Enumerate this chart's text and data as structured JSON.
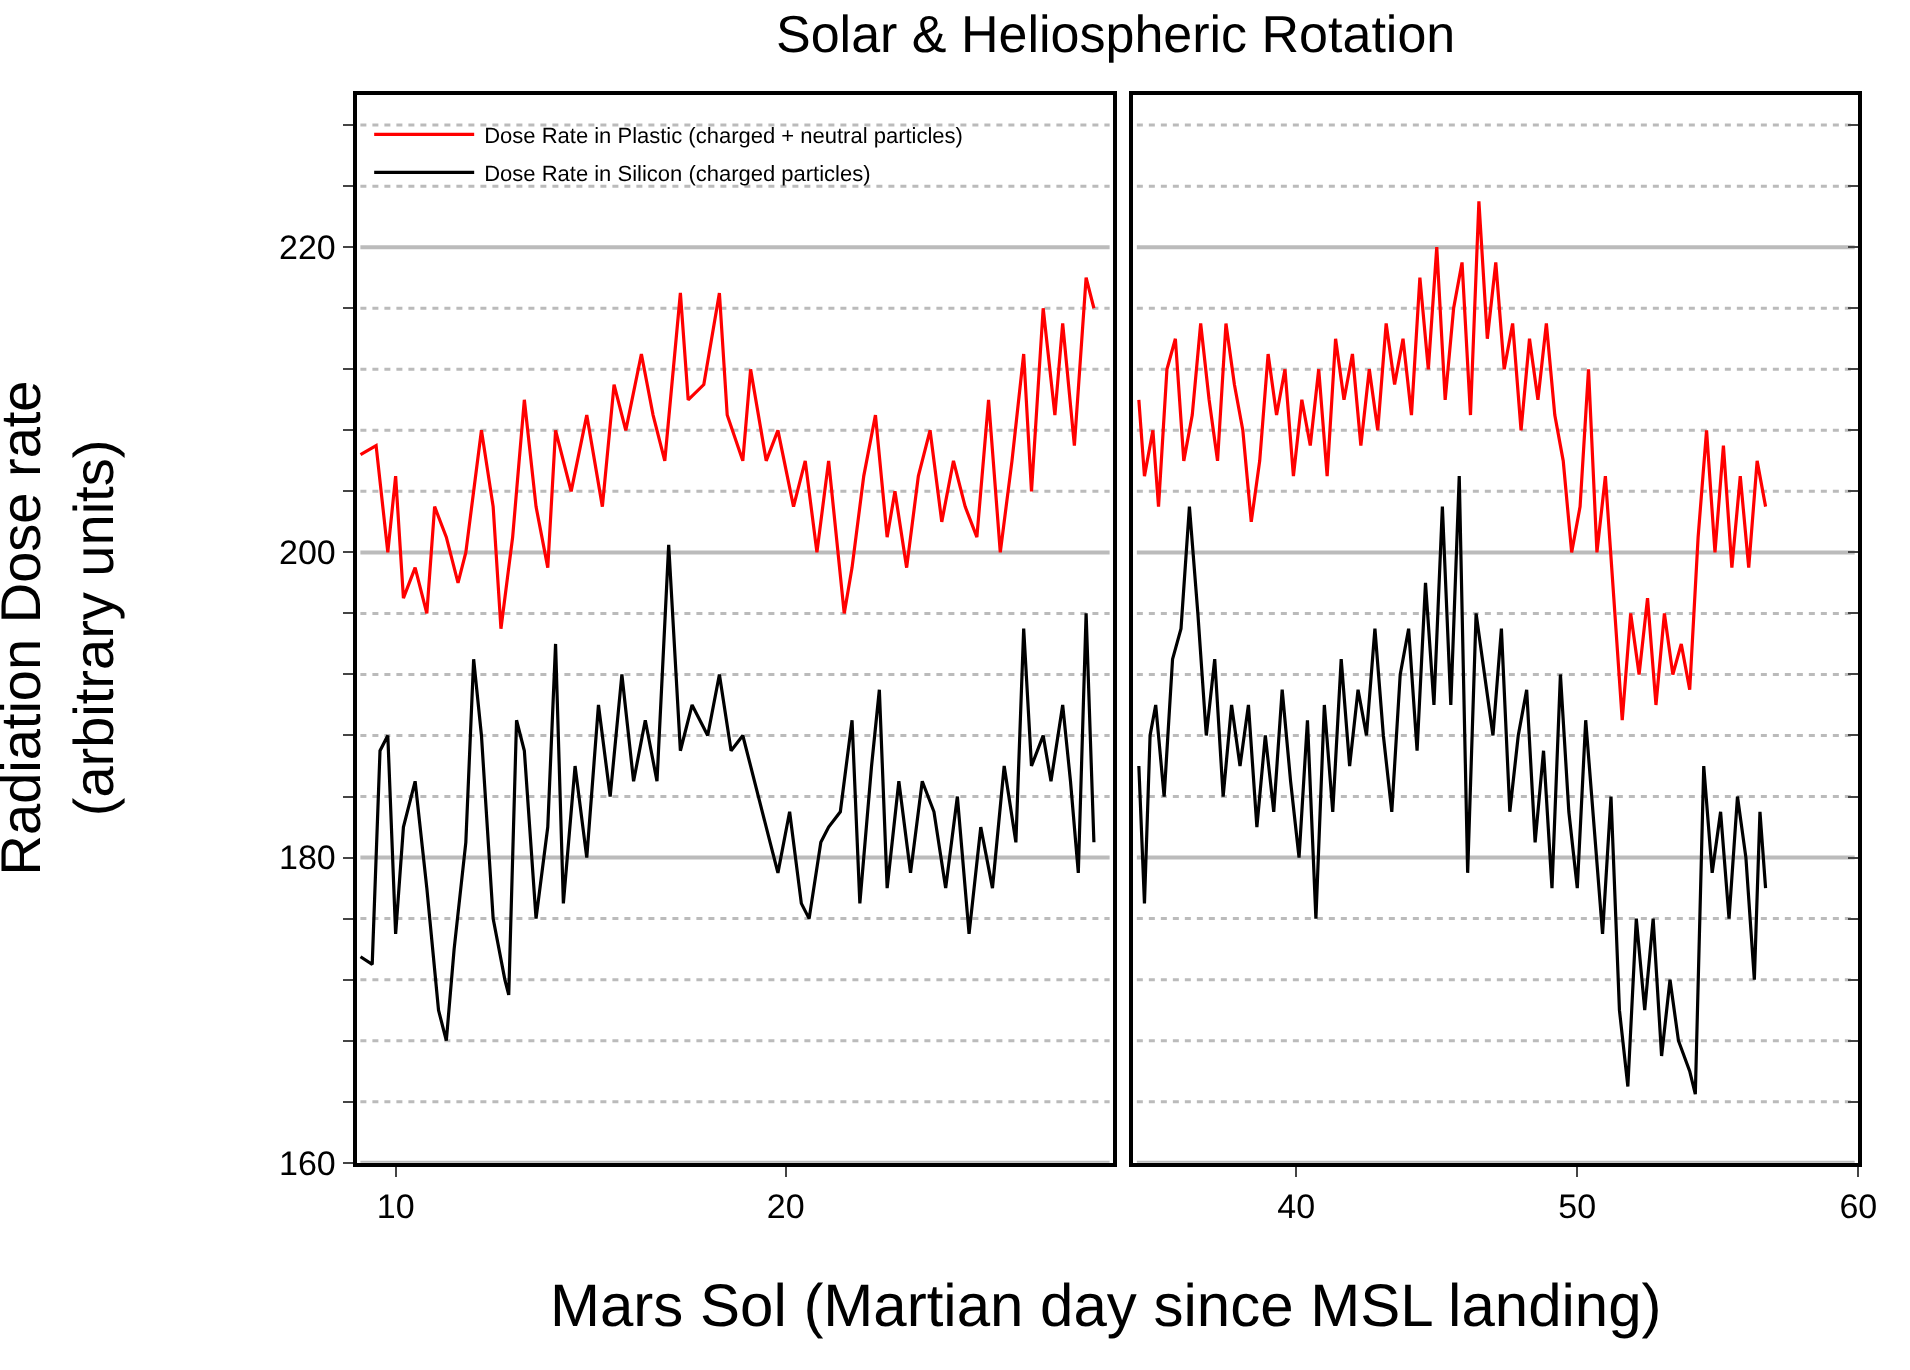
{
  "chart_data": [
    {
      "type": "line",
      "title": "Solar & Heliospheric Rotation",
      "xlabel": "Mars Sol (Martian day since MSL landing)",
      "ylabel": "Radiation Dose rate\n(arbitrary units)",
      "xlim": [
        9,
        28.4
      ],
      "xticks": [
        10,
        20
      ],
      "ylim": [
        160,
        230
      ],
      "yticks": [
        160,
        {
          "value": 164,
          "label": null
        },
        {
          "value": 168,
          "label": null
        },
        {
          "value": 172,
          "label": null
        },
        {
          "value": 176,
          "label": null
        },
        180,
        {
          "value": 184,
          "label": null
        },
        {
          "value": 188,
          "label": null
        },
        {
          "value": 192,
          "label": null
        },
        {
          "value": 196,
          "label": null
        },
        200,
        {
          "value": 204,
          "label": null
        },
        {
          "value": 208,
          "label": null
        },
        {
          "value": 212,
          "label": null
        },
        {
          "value": 216,
          "label": null
        },
        220,
        {
          "value": 224,
          "label": null
        },
        {
          "value": 228,
          "label": null
        }
      ],
      "grid": "y",
      "legend": "top left",
      "marker": "none",
      "line_style": "solid",
      "series": [
        {
          "name": "Dose Rate in Plastic (charged + neutral particles)",
          "color": "#ff0000",
          "x": [
            9.1,
            9.5,
            9.8,
            10.0,
            10.2,
            10.5,
            10.8,
            11.0,
            11.3,
            11.6,
            11.8,
            12.2,
            12.5,
            12.7,
            13.0,
            13.3,
            13.6,
            13.9,
            14.1,
            14.5,
            14.9,
            15.3,
            15.6,
            15.9,
            16.3,
            16.6,
            16.9,
            17.3,
            17.5,
            17.9,
            18.3,
            18.5,
            18.9,
            19.1,
            19.5,
            19.8,
            20.2,
            20.5,
            20.8,
            21.1,
            21.5,
            21.7,
            22.0,
            22.3,
            22.6,
            22.8,
            23.1,
            23.4,
            23.7,
            24.0,
            24.3,
            24.6,
            24.9,
            25.2,
            25.5,
            25.8,
            26.1,
            26.3,
            26.6,
            26.9,
            27.1,
            27.4,
            27.7,
            27.9
          ],
          "values": [
            206.4,
            207,
            200,
            205,
            197,
            199,
            196,
            203,
            201,
            198,
            200,
            208,
            203,
            195,
            201,
            210,
            203,
            199,
            208,
            204,
            209,
            203,
            211,
            208,
            213,
            209,
            206,
            217,
            210,
            211,
            217,
            209,
            206,
            212,
            206,
            208,
            203,
            206,
            200,
            206,
            196,
            199,
            205,
            209,
            201,
            204,
            199,
            205,
            208,
            202,
            206,
            203,
            201,
            210,
            200,
            206,
            213,
            204,
            216,
            209,
            215,
            207,
            218,
            216
          ]
        },
        {
          "name": "Dose Rate in Silicon (charged particles)",
          "color": "#000000",
          "x": [
            9.1,
            9.4,
            9.6,
            9.8,
            10.0,
            10.2,
            10.5,
            10.8,
            11.1,
            11.3,
            11.5,
            11.8,
            12.0,
            12.2,
            12.5,
            12.8,
            12.9,
            13.1,
            13.3,
            13.6,
            13.9,
            14.1,
            14.3,
            14.6,
            14.9,
            15.2,
            15.5,
            15.8,
            16.1,
            16.4,
            16.7,
            17.0,
            17.3,
            17.6,
            18.0,
            18.3,
            18.6,
            18.9,
            19.3,
            19.6,
            19.8,
            20.1,
            20.4,
            20.6,
            20.9,
            21.1,
            21.4,
            21.7,
            21.9,
            22.2,
            22.4,
            22.6,
            22.9,
            23.2,
            23.5,
            23.8,
            24.1,
            24.4,
            24.7,
            25.0,
            25.3,
            25.6,
            25.9,
            26.1,
            26.3,
            26.6,
            26.8,
            27.1,
            27.3,
            27.5,
            27.7,
            27.9
          ],
          "values": [
            173.5,
            173,
            187,
            188,
            175,
            182,
            185,
            178,
            170,
            168,
            174,
            181,
            193,
            188,
            176,
            172,
            171,
            189,
            187,
            176,
            182,
            194,
            177,
            186,
            180,
            190,
            184,
            192,
            185,
            189,
            185,
            200.5,
            187,
            190,
            188,
            192,
            187,
            188,
            184,
            181,
            179,
            183,
            177,
            176,
            181,
            182,
            183,
            189,
            177,
            186,
            191,
            178,
            185,
            179,
            185,
            183,
            178,
            184,
            175,
            182,
            178,
            186,
            181,
            195,
            186,
            188,
            185,
            190,
            185,
            179,
            196,
            181
          ]
        }
      ]
    },
    {
      "type": "line",
      "xlim": [
        34.2,
        60
      ],
      "xticks": [
        40,
        50,
        60
      ],
      "ylim": [
        160,
        230
      ],
      "yticks": [
        160,
        {
          "value": 164,
          "label": null
        },
        {
          "value": 168,
          "label": null
        },
        {
          "value": 172,
          "label": null
        },
        {
          "value": 176,
          "label": null
        },
        180,
        {
          "value": 184,
          "label": null
        },
        {
          "value": 188,
          "label": null
        },
        {
          "value": 192,
          "label": null
        },
        {
          "value": 196,
          "label": null
        },
        200,
        {
          "value": 204,
          "label": null
        },
        {
          "value": 208,
          "label": null
        },
        {
          "value": 212,
          "label": null
        },
        {
          "value": 216,
          "label": null
        },
        220,
        {
          "value": 224,
          "label": null
        },
        {
          "value": 228,
          "label": null
        }
      ],
      "grid": "y",
      "tick_labels": "x",
      "marker": "none",
      "line_style": "solid",
      "series": [
        {
          "color": "#ff0000",
          "x": [
            34.4,
            34.6,
            34.9,
            35.1,
            35.4,
            35.7,
            36.0,
            36.3,
            36.6,
            36.9,
            37.2,
            37.5,
            37.8,
            38.1,
            38.4,
            38.7,
            39.0,
            39.3,
            39.6,
            39.9,
            40.2,
            40.5,
            40.8,
            41.1,
            41.4,
            41.7,
            42.0,
            42.3,
            42.6,
            42.9,
            43.2,
            43.5,
            43.8,
            44.1,
            44.4,
            44.7,
            45.0,
            45.3,
            45.6,
            45.9,
            46.2,
            46.5,
            46.8,
            47.1,
            47.4,
            47.7,
            48.0,
            48.3,
            48.6,
            48.9,
            49.2,
            49.5,
            49.8,
            50.1,
            50.4,
            50.7,
            51.0,
            51.3,
            51.6,
            51.9,
            52.2,
            52.5,
            52.8,
            53.1,
            53.4,
            53.7,
            54.0,
            54.3,
            54.6,
            54.9,
            55.2,
            55.5,
            55.8,
            56.1,
            56.4,
            56.7
          ],
          "values": [
            210,
            205,
            208,
            203,
            212,
            214,
            206,
            209,
            215,
            210,
            206,
            215,
            211,
            208,
            202,
            206,
            213,
            209,
            212,
            205,
            210,
            207,
            212,
            205,
            214,
            210,
            213,
            207,
            212,
            208,
            215,
            211,
            214,
            209,
            218,
            212,
            220,
            210,
            216,
            219,
            209,
            223,
            214,
            219,
            212,
            215,
            208,
            214,
            210,
            215,
            209,
            206,
            200,
            203,
            212,
            200,
            205,
            197,
            189,
            196,
            192,
            197,
            190,
            196,
            192,
            194,
            191,
            201,
            208,
            200,
            207,
            199,
            205,
            199,
            206,
            203
          ]
        },
        {
          "color": "#000000",
          "x": [
            34.4,
            34.6,
            34.8,
            35.0,
            35.3,
            35.6,
            35.9,
            36.2,
            36.5,
            36.8,
            37.1,
            37.4,
            37.7,
            38.0,
            38.3,
            38.6,
            38.9,
            39.2,
            39.5,
            39.8,
            40.1,
            40.4,
            40.7,
            41.0,
            41.3,
            41.6,
            41.9,
            42.2,
            42.5,
            42.8,
            43.1,
            43.4,
            43.7,
            44.0,
            44.3,
            44.6,
            44.9,
            45.2,
            45.5,
            45.8,
            46.1,
            46.4,
            46.7,
            47.0,
            47.3,
            47.6,
            47.9,
            48.2,
            48.5,
            48.8,
            49.1,
            49.4,
            49.7,
            50.0,
            50.3,
            50.6,
            50.9,
            51.2,
            51.5,
            51.8,
            52.1,
            52.4,
            52.7,
            53.0,
            53.3,
            53.6,
            54.0,
            54.2,
            54.5,
            54.8,
            55.1,
            55.4,
            55.7,
            56.0,
            56.3,
            56.5,
            56.7
          ],
          "values": [
            186,
            177,
            188,
            190,
            184,
            193,
            195,
            203,
            196,
            188,
            193,
            184,
            190,
            186,
            190,
            182,
            188,
            183,
            191,
            185,
            180,
            189,
            176,
            190,
            183,
            193,
            186,
            191,
            188,
            195,
            188,
            183,
            192,
            195,
            187,
            198,
            190,
            203,
            190,
            205,
            179,
            196,
            192,
            188,
            195,
            183,
            188,
            191,
            181,
            187,
            178,
            192,
            183,
            178,
            189,
            182,
            175,
            184,
            170,
            165,
            176,
            170,
            176,
            167,
            172,
            168,
            166,
            164.5,
            186,
            179,
            183,
            176,
            184,
            180,
            172,
            183,
            178
          ]
        }
      ]
    }
  ]
}
